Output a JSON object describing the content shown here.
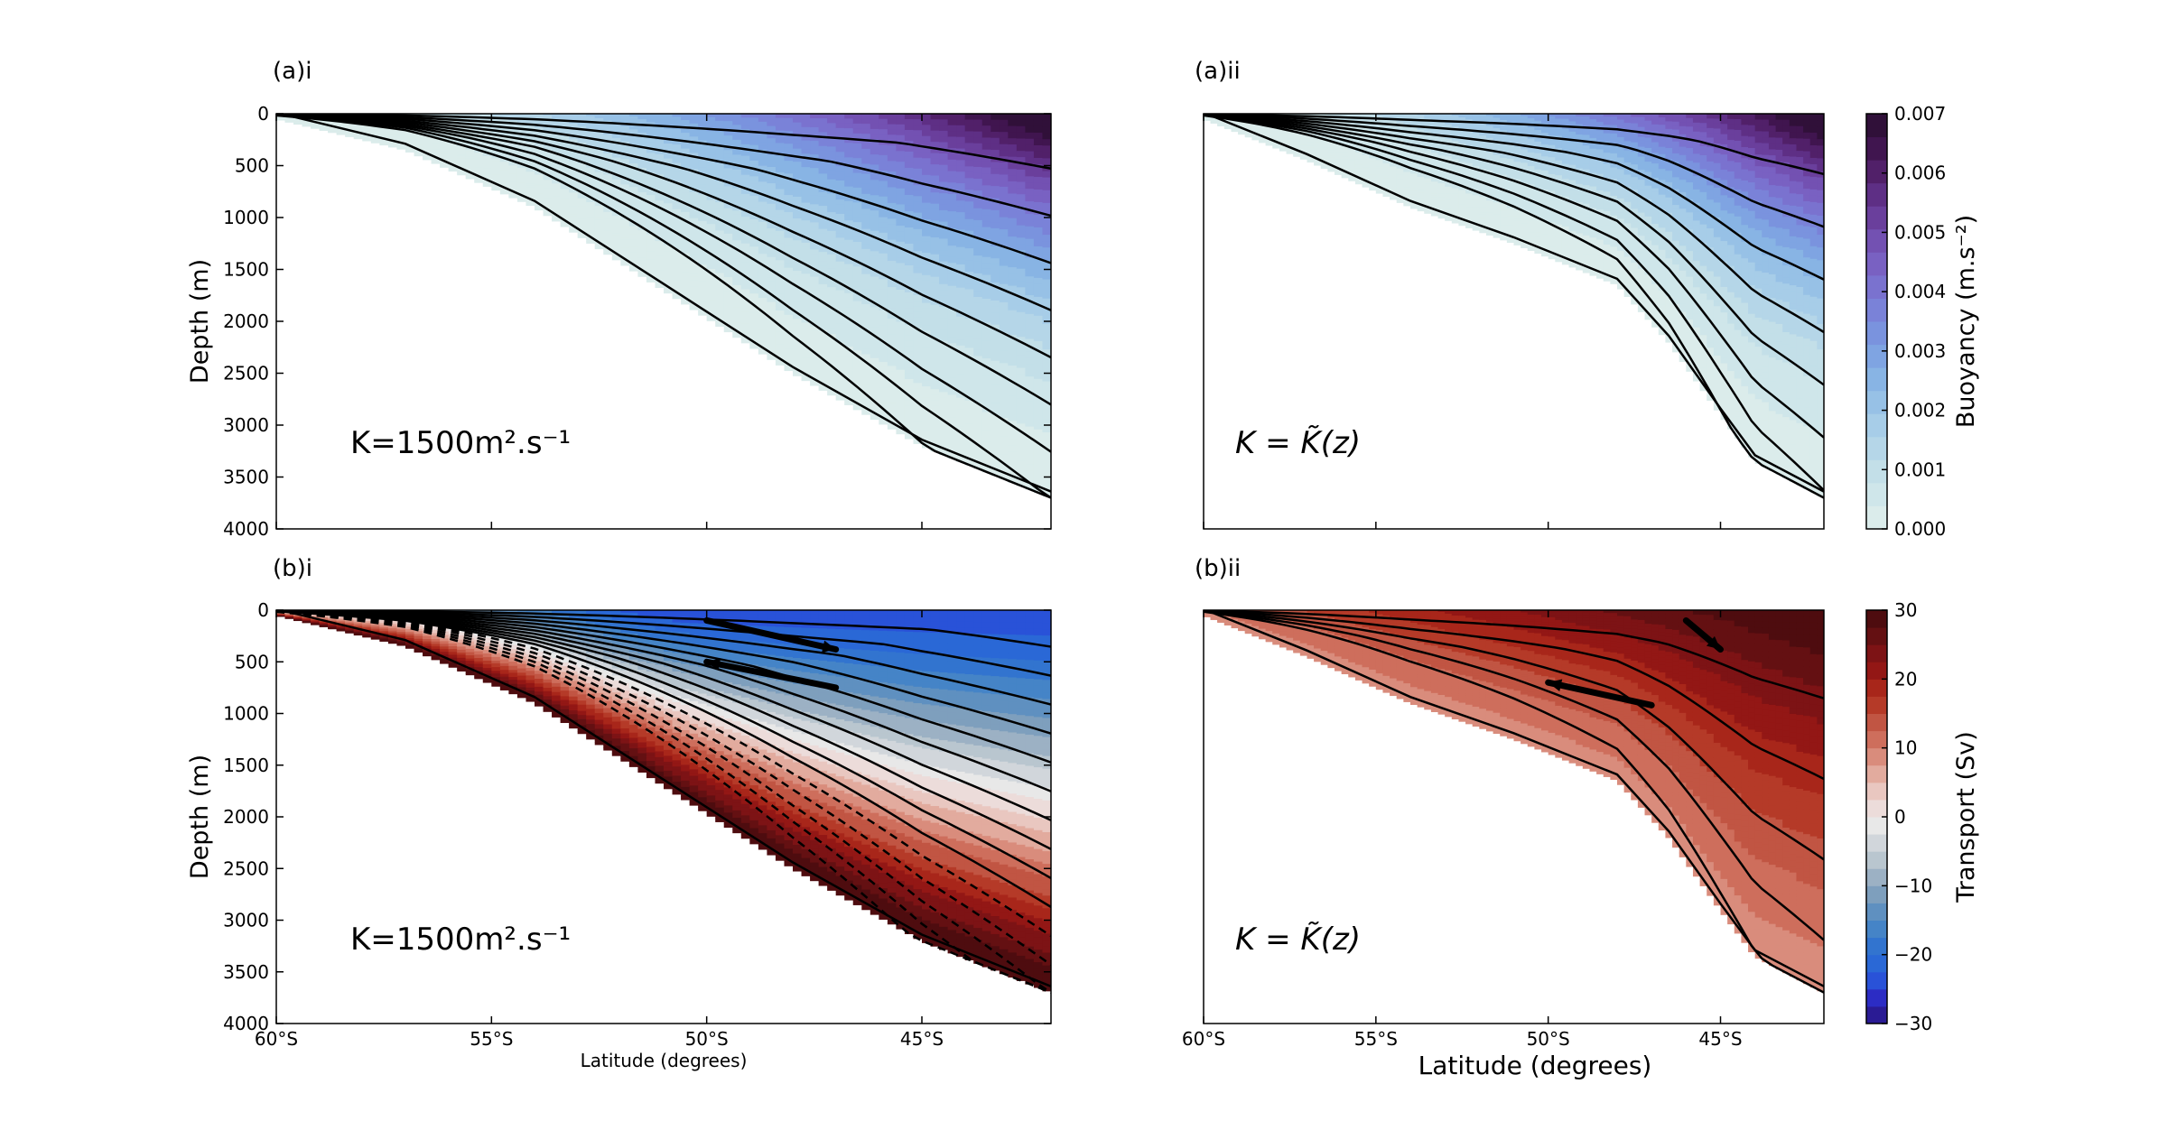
{
  "chart_data": [
    {
      "id": "a_i",
      "type": "heatmap",
      "panel_label": "(a)i",
      "ylabel": "Depth (m)",
      "xlabel": "",
      "annotation": "K=1500m².s⁻¹",
      "xlim": [
        -60,
        -42
      ],
      "ylim": [
        4000,
        0
      ],
      "y_ticks": [
        0,
        500,
        1000,
        1500,
        2000,
        2500,
        3000,
        3500,
        4000
      ],
      "y_tick_labels": [
        "0",
        "500",
        "1000",
        "1500",
        "2000",
        "2500",
        "3000",
        "3500",
        "4000"
      ],
      "x_ticks": [
        -60,
        -55,
        -50,
        -45
      ],
      "x_tick_labels": [],
      "bottom_depth": [
        [
          -60,
          50
        ],
        [
          -57,
          350
        ],
        [
          -54,
          900
        ],
        [
          -51,
          1700
        ],
        [
          -48,
          2500
        ],
        [
          -45,
          3200
        ],
        [
          -42,
          3700
        ]
      ],
      "field": "buoyancy",
      "contours_solid": 9,
      "contours_dashed": 0,
      "arrows": []
    },
    {
      "id": "a_ii",
      "type": "heatmap",
      "panel_label": "(a)ii",
      "ylabel": "",
      "xlabel": "",
      "annotation": "K = K̃(z)",
      "xlim": [
        -60,
        -42
      ],
      "ylim": [
        4000,
        0
      ],
      "y_ticks": [],
      "y_tick_labels": [],
      "x_ticks": [
        -60,
        -55,
        -50,
        -45
      ],
      "x_tick_labels": [],
      "bottom_depth": [
        [
          -60,
          50
        ],
        [
          -57,
          450
        ],
        [
          -54,
          900
        ],
        [
          -51,
          1250
        ],
        [
          -48,
          1650
        ],
        [
          -46.5,
          2200
        ],
        [
          -45,
          2900
        ],
        [
          -44,
          3350
        ],
        [
          -42,
          3700
        ]
      ],
      "field": "buoyancy",
      "contours_solid": 8,
      "contours_dashed": 0,
      "arrows": []
    },
    {
      "id": "b_i",
      "type": "heatmap",
      "panel_label": "(b)i",
      "ylabel": "Depth (m)",
      "xlabel": "Latitude (degrees)",
      "annotation": "K=1500m².s⁻¹",
      "xlim": [
        -60,
        -42
      ],
      "ylim": [
        4000,
        0
      ],
      "y_ticks": [
        0,
        500,
        1000,
        1500,
        2000,
        2500,
        3000,
        3500,
        4000
      ],
      "y_tick_labels": [
        "0",
        "500",
        "1000",
        "1500",
        "2000",
        "2500",
        "3000",
        "3500",
        "4000"
      ],
      "x_ticks": [
        -60,
        -55,
        -50,
        -45
      ],
      "x_tick_labels": [
        "60°S",
        "55°S",
        "50°S",
        "45°S"
      ],
      "bottom_depth": [
        [
          -60,
          50
        ],
        [
          -57,
          350
        ],
        [
          -54,
          900
        ],
        [
          -51,
          1700
        ],
        [
          -48,
          2500
        ],
        [
          -45,
          3200
        ],
        [
          -42,
          3700
        ]
      ],
      "field": "transport_bi",
      "contours_solid": 10,
      "contours_dashed": 5,
      "arrows": [
        {
          "from": [
            -50,
            100
          ],
          "to": [
            -47,
            380
          ]
        },
        {
          "from": [
            -47,
            750
          ],
          "to": [
            -50,
            500
          ]
        }
      ]
    },
    {
      "id": "b_ii",
      "type": "heatmap",
      "panel_label": "(b)ii",
      "ylabel": "",
      "xlabel": "Latitude (degrees)",
      "annotation": "K = K̃(z)",
      "xlim": [
        -60,
        -42
      ],
      "ylim": [
        4000,
        0
      ],
      "y_ticks": [],
      "y_tick_labels": [],
      "x_ticks": [
        -60,
        -55,
        -50,
        -45
      ],
      "x_tick_labels": [
        "60°S",
        "55°S",
        "50°S",
        "45°S"
      ],
      "bottom_depth": [
        [
          -60,
          50
        ],
        [
          -57,
          450
        ],
        [
          -54,
          900
        ],
        [
          -51,
          1250
        ],
        [
          -48,
          1650
        ],
        [
          -46.5,
          2200
        ],
        [
          -45,
          2900
        ],
        [
          -44,
          3350
        ],
        [
          -42,
          3700
        ]
      ],
      "field": "transport_bii",
      "contours_solid": 5,
      "contours_dashed": 0,
      "arrows": [
        {
          "from": [
            -46,
            100
          ],
          "to": [
            -45,
            380
          ]
        },
        {
          "from": [
            -47,
            920
          ],
          "to": [
            -50,
            700
          ]
        }
      ]
    }
  ],
  "colorbars": [
    {
      "id": "buoyancy",
      "label": "Buoyancy (m.s⁻²)",
      "range": [
        0.0,
        0.007
      ],
      "ticks": [
        0.0,
        0.001,
        0.002,
        0.003,
        0.004,
        0.005,
        0.006,
        0.007
      ],
      "tick_labels": [
        "0.000",
        "0.001",
        "0.002",
        "0.003",
        "0.004",
        "0.005",
        "0.006",
        "0.007"
      ],
      "colors": [
        "#dbeceb",
        "#cfe6ea",
        "#c3dfe8",
        "#b5d6e8",
        "#a7cde8",
        "#97c1e6",
        "#88b4e4",
        "#7fa4e2",
        "#7a93de",
        "#7a82d8",
        "#7a72cf",
        "#7961c2",
        "#7351b2",
        "#6a3f9c",
        "#5e2f85",
        "#512069",
        "#40154f",
        "#301039"
      ]
    },
    {
      "id": "transport",
      "label": "Transport (Sv)",
      "range": [
        -30,
        30
      ],
      "ticks": [
        -30,
        -20,
        -10,
        0,
        10,
        20,
        30
      ],
      "tick_labels": [
        "−30",
        "−20",
        "−10",
        "0",
        "10",
        "20",
        "30"
      ],
      "colors": [
        "#2a1b94",
        "#2c2cc4",
        "#2952d8",
        "#2a68d6",
        "#3274cf",
        "#4584c7",
        "#5f90c0",
        "#7e9fbd",
        "#9cb1c4",
        "#b9c6cf",
        "#d1d6db",
        "#e8e8e8",
        "#ecdcda",
        "#e9c7c0",
        "#e2ab9e",
        "#d98c7c",
        "#ce6e5c",
        "#c15543",
        "#b53a28",
        "#a8261a",
        "#931715",
        "#7d1315",
        "#641012",
        "#4e0c0f"
      ]
    }
  ],
  "axis_labels": {
    "latitude_small": "Latitude (degrees)",
    "latitude_large": "Latitude (degrees)"
  }
}
